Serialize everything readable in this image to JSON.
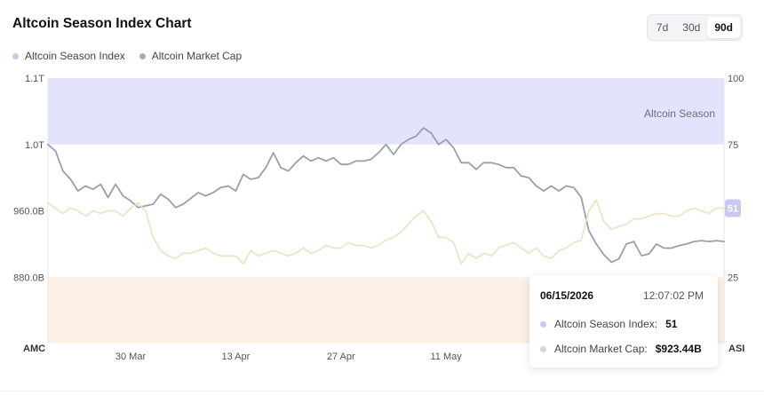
{
  "title": "Altcoin Season Index Chart",
  "timeframes": [
    {
      "label": "7d",
      "active": false
    },
    {
      "label": "30d",
      "active": false
    },
    {
      "label": "90d",
      "active": true
    }
  ],
  "legend": [
    {
      "label": "Altcoin Season Index",
      "color": "#c9c8f0"
    },
    {
      "label": "Altcoin Market Cap",
      "color": "#a9a9c6"
    }
  ],
  "tooltip": {
    "date": "06/15/2026",
    "time": "12:07:02 PM",
    "index_label": "Altcoin Season Index:",
    "index_value": "51",
    "cap_label": "Altcoin Market Cap:",
    "cap_value": "$923.44B"
  },
  "chart_data": {
    "type": "line",
    "left_axis": {
      "label": "AMC",
      "ticks": [
        "880.0B",
        "960.0B",
        "1.0T",
        "1.1T"
      ]
    },
    "right_axis": {
      "label": "ASI",
      "ticks": [
        "25",
        "50",
        "75",
        "100"
      ],
      "ylim": [
        0,
        100
      ]
    },
    "left_axis_values_B": {
      "880.0B": 880,
      "960.0B": 960,
      "1.0T": 1040,
      "1.1T": 1120
    },
    "x_ticks": [
      {
        "label": "30 Mar",
        "x": 11
      },
      {
        "label": "13 Apr",
        "x": 25
      },
      {
        "label": "27 Apr",
        "x": 39
      },
      {
        "label": "11 May",
        "x": 53
      }
    ],
    "bands": [
      {
        "label": "Altcoin Season",
        "from": 75,
        "to": 100,
        "color": "#e3e4fb"
      },
      {
        "label": "",
        "from": 0,
        "to": 25,
        "color": "#fdf0e6"
      }
    ],
    "current_badge": "51",
    "grid": false,
    "legend_position": "top-left",
    "series": [
      {
        "name": "Altcoin Market Cap",
        "axis": "left",
        "unit": "B",
        "color": "#9aa0a8",
        "x": [
          0,
          1,
          2,
          3,
          4,
          5,
          6,
          7,
          8,
          9,
          10,
          11,
          12,
          13,
          14,
          15,
          16,
          17,
          18,
          19,
          20,
          21,
          22,
          23,
          24,
          25,
          26,
          27,
          28,
          29,
          30,
          31,
          32,
          33,
          34,
          35,
          36,
          37,
          38,
          39,
          40,
          41,
          42,
          43,
          44,
          45,
          46,
          47,
          48,
          49,
          50,
          51,
          52,
          53,
          54,
          55,
          56,
          57,
          58,
          59,
          60,
          61,
          62,
          63,
          64,
          65,
          66,
          67,
          68,
          69,
          70,
          71,
          72,
          73,
          74,
          75,
          76,
          77,
          78,
          79,
          80,
          81,
          82,
          83,
          84,
          85,
          86,
          87,
          88,
          89,
          90
        ],
        "values": [
          1040,
          1032,
          1008,
          998,
          984,
          990,
          986,
          992,
          976,
          992,
          978,
          972,
          964,
          966,
          968,
          980,
          974,
          964,
          968,
          975,
          982,
          978,
          982,
          988,
          990,
          984,
          1004,
          998,
          1000,
          1012,
          1030,
          1012,
          1008,
          1018,
          1026,
          1020,
          1024,
          1020,
          1024,
          1016,
          1016,
          1020,
          1020,
          1022,
          1030,
          1040,
          1028,
          1040,
          1046,
          1050,
          1060,
          1054,
          1040,
          1046,
          1036,
          1018,
          1018,
          1010,
          1018,
          1018,
          1016,
          1012,
          1012,
          1002,
          1000,
          990,
          984,
          990,
          984,
          990,
          988,
          976,
          936,
          920,
          907,
          898,
          902,
          920,
          923,
          906,
          908,
          920,
          915,
          915,
          918,
          920,
          923,
          924,
          923,
          924,
          923
        ]
      },
      {
        "name": "Altcoin Season Index",
        "axis": "right",
        "color": "#f0dfc0",
        "x": [
          0,
          1,
          2,
          3,
          4,
          5,
          6,
          7,
          8,
          9,
          10,
          11,
          12,
          13,
          14,
          15,
          16,
          17,
          18,
          19,
          20,
          21,
          22,
          23,
          24,
          25,
          26,
          27,
          28,
          29,
          30,
          31,
          32,
          33,
          34,
          35,
          36,
          37,
          38,
          39,
          40,
          41,
          42,
          43,
          44,
          45,
          46,
          47,
          48,
          49,
          50,
          51,
          52,
          53,
          54,
          55,
          56,
          57,
          58,
          59,
          60,
          61,
          62,
          63,
          64,
          65,
          66,
          67,
          68,
          69,
          70,
          71,
          72,
          73,
          74,
          75,
          76,
          77,
          78,
          79,
          80,
          81,
          82,
          83,
          84,
          85,
          86,
          87,
          88,
          89,
          90
        ],
        "values": [
          53,
          51,
          49,
          51,
          50,
          48,
          50,
          49,
          50,
          50,
          48,
          51,
          53,
          50,
          40,
          35,
          33,
          32,
          34,
          34,
          35,
          36,
          34,
          33,
          33,
          33,
          30,
          35,
          33,
          34,
          35,
          34,
          33,
          34,
          36,
          34,
          35,
          37,
          36,
          36,
          38,
          37,
          37,
          36,
          37,
          39,
          40,
          42,
          45,
          48,
          50,
          46,
          40,
          40,
          38,
          30,
          34,
          32,
          34,
          33,
          36,
          37,
          38,
          36,
          34,
          36,
          33,
          32,
          35,
          36,
          38,
          39,
          50,
          54,
          46,
          43,
          44,
          45,
          47,
          47,
          48,
          49,
          49,
          48,
          48,
          50,
          51,
          50,
          49,
          51,
          51
        ]
      }
    ]
  }
}
